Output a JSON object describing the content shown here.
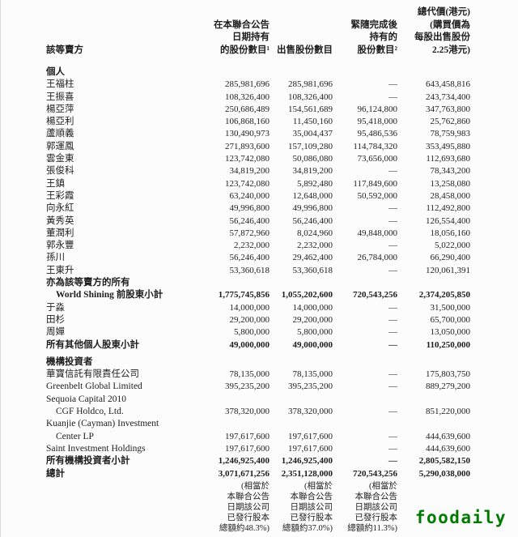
{
  "table": {
    "header": {
      "col1": "該等賣方",
      "col2_lines": [
        "在本聯合公告",
        "日期持有",
        "的股份數目¹"
      ],
      "col3_lines": [
        "出售股份數目"
      ],
      "col4_lines": [
        "緊隨完成後",
        "持有的",
        "股份數目²"
      ],
      "col5_lines": [
        "總代價(港元)",
        "(購買價為",
        "每股出售股份",
        "2.25港元)"
      ]
    },
    "rows": [
      {
        "section": true,
        "label": "個人"
      },
      {
        "label": "王福柱",
        "c2": "285,981,696",
        "c3": "285,981,696",
        "c4": "—",
        "c5": "643,458,816"
      },
      {
        "label": "王振喜",
        "c2": "108,326,400",
        "c3": "108,326,400",
        "c4": "—",
        "c5": "243,734,400"
      },
      {
        "label": "楊亞萍",
        "c2": "250,686,489",
        "c3": "154,561,689",
        "c4": "96,124,800",
        "c5": "347,763,800"
      },
      {
        "label": "楊亞利",
        "c2": "106,868,160",
        "c3": "11,450,160",
        "c4": "95,418,000",
        "c5": "25,762,860"
      },
      {
        "label": "蘆順義",
        "c2": "130,490,973",
        "c3": "35,004,437",
        "c4": "95,486,536",
        "c5": "78,759,983"
      },
      {
        "label": "郭運鳳",
        "c2": "271,893,600",
        "c3": "157,109,280",
        "c4": "114,784,320",
        "c5": "353,495,880"
      },
      {
        "label": "雲金東",
        "c2": "123,742,080",
        "c3": "50,086,080",
        "c4": "73,656,000",
        "c5": "112,693,680"
      },
      {
        "label": "張俊科",
        "c2": "34,819,200",
        "c3": "34,819,200",
        "c4": "—",
        "c5": "78,343,200"
      },
      {
        "label": "王鎮",
        "c2": "123,742,080",
        "c3": "5,892,480",
        "c4": "117,849,600",
        "c5": "13,258,080"
      },
      {
        "label": "王彩霞",
        "c2": "63,240,000",
        "c3": "12,648,000",
        "c4": "50,592,000",
        "c5": "28,458,000"
      },
      {
        "label": "向永紅",
        "c2": "49,996,800",
        "c3": "49,996,800",
        "c4": "—",
        "c5": "112,492,800"
      },
      {
        "label": "黃秀英",
        "c2": "56,246,400",
        "c3": "56,246,400",
        "c4": "—",
        "c5": "126,554,400"
      },
      {
        "label": "董潤利",
        "c2": "57,872,960",
        "c3": "8,024,960",
        "c4": "49,848,000",
        "c5": "18,056,160"
      },
      {
        "label": "郭永豐",
        "c2": "2,232,000",
        "c3": "2,232,000",
        "c4": "—",
        "c5": "5,022,000"
      },
      {
        "label": "孫川",
        "c2": "56,246,400",
        "c3": "29,462,400",
        "c4": "26,784,000",
        "c5": "66,290,400"
      },
      {
        "label": "王東升",
        "c2": "53,360,618",
        "c3": "53,360,618",
        "c4": "—",
        "c5": "120,061,391"
      },
      {
        "label": "亦為該等賣方的所有",
        "bold": true
      },
      {
        "label": "World Shining 前股東小計",
        "bold": true,
        "indent": true,
        "c2": "1,775,745,856",
        "c3": "1,055,202,600",
        "c4": "720,543,256",
        "c5": "2,374,205,850"
      },
      {
        "label": "于淼",
        "c2": "14,000,000",
        "c3": "14,000,000",
        "c4": "—",
        "c5": "31,500,000"
      },
      {
        "label": "田杉",
        "c2": "29,200,000",
        "c3": "29,200,000",
        "c4": "—",
        "c5": "65,700,000"
      },
      {
        "label": "周嬋",
        "c2": "5,800,000",
        "c3": "5,800,000",
        "c4": "—",
        "c5": "13,050,000"
      },
      {
        "label": "所有其他個人股東小計",
        "bold": true,
        "c2": "49,000,000",
        "c3": "49,000,000",
        "c4": "—",
        "c5": "110,250,000"
      },
      {
        "spacer": true
      },
      {
        "section": true,
        "label": "機構投資者"
      },
      {
        "label": "華寶信託有限責任公司",
        "c2": "78,135,000",
        "c3": "78,135,000",
        "c4": "—",
        "c5": "175,803,750"
      },
      {
        "label": "Greenbelt Global Limited",
        "c2": "395,235,200",
        "c3": "395,235,200",
        "c4": "—",
        "c5": "889,279,200"
      },
      {
        "label": "Sequoia Capital 2010"
      },
      {
        "label": "CGF Holdco, Ltd.",
        "indent": true,
        "c2": "378,320,000",
        "c3": "378,320,000",
        "c4": "—",
        "c5": "851,220,000"
      },
      {
        "label": "Kuanjie (Cayman) Investment"
      },
      {
        "label": "Center LP",
        "indent": true,
        "c2": "197,617,600",
        "c3": "197,617,600",
        "c4": "—",
        "c5": "444,639,600"
      },
      {
        "label": "Saint Investment Holdings",
        "c2": "197,617,600",
        "c3": "197,617,600",
        "c4": "—",
        "c5": "444,639,600"
      },
      {
        "label": "所有機構投資者小計",
        "bold": true,
        "c2": "1,246,925,400",
        "c3": "1,246,925,400",
        "c4": "—",
        "c5": "2,805,582,150"
      },
      {
        "label": "總計",
        "bold": true,
        "c2": "3,071,671,256",
        "c3": "2,351,128,000",
        "c4": "720,543,256",
        "c5": "5,290,038,000"
      }
    ],
    "footnote": {
      "c2": [
        "(相當於",
        "本聯合公告",
        "日期該公司",
        "已發行股本",
        "總額約48.3%)"
      ],
      "c3": [
        "(相當於",
        "本聯合公告",
        "日期該公司",
        "已發行股本",
        "總額約37.0%)"
      ],
      "c4": [
        "(相當於",
        "本聯合公告",
        "日期該公司",
        "已發行股本",
        "總額約11.3%)"
      ]
    }
  },
  "watermark": {
    "text": "foodaily",
    "color": "#007b00"
  }
}
